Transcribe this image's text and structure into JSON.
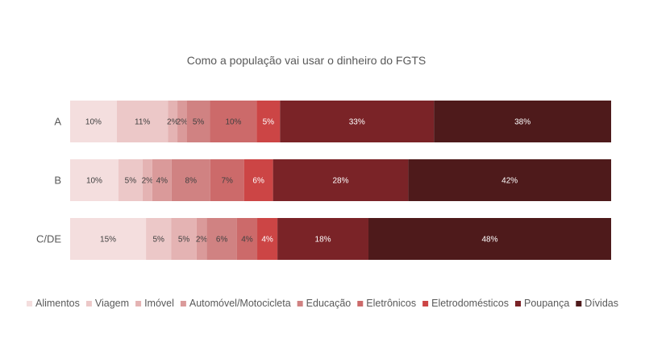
{
  "chart_data": {
    "type": "bar",
    "orientation": "horizontal",
    "stacked": "percent",
    "title": "Como a população vai usar o dinheiro do FGTS",
    "xlabel": "",
    "ylabel": "",
    "xlim": [
      0,
      100
    ],
    "grid": false,
    "legend_position": "bottom",
    "categories": [
      "A",
      "B",
      "C/DE"
    ],
    "series": [
      {
        "name": "Alimentos",
        "color": "#f4dede",
        "label_color": "#404040",
        "values": [
          10,
          10,
          15
        ],
        "labels": [
          "10%",
          "10%",
          "15%"
        ]
      },
      {
        "name": "Viagem",
        "color": "#ecc8c8",
        "label_color": "#404040",
        "values": [
          11,
          5,
          5
        ],
        "labels": [
          "11%",
          "5%",
          "5%"
        ]
      },
      {
        "name": "Imóvel",
        "color": "#e4b3b3",
        "label_color": "#404040",
        "values": [
          2,
          2,
          5
        ],
        "labels": [
          "2%",
          "2%",
          "5%"
        ]
      },
      {
        "name": "Automóvel/Motocicleta",
        "color": "#da9a9a",
        "label_color": "#404040",
        "values": [
          2,
          4,
          2
        ],
        "labels": [
          "2%",
          "4%",
          "2%"
        ]
      },
      {
        "name": "Educação",
        "color": "#d08282",
        "label_color": "#404040",
        "values": [
          5,
          8,
          6
        ],
        "labels": [
          "5%",
          "8%",
          "6%"
        ]
      },
      {
        "name": "Eletrônicos",
        "color": "#cc6a6a",
        "label_color": "#404040",
        "values": [
          10,
          7,
          4
        ],
        "labels": [
          "10%",
          "7%",
          "4%"
        ]
      },
      {
        "name": "Eletrodomésticos",
        "color": "#cc4545",
        "label_color": "#ffffff",
        "values": [
          5,
          6,
          4
        ],
        "labels": [
          "5%",
          "6%",
          "4%"
        ]
      },
      {
        "name": "Poupança",
        "color": "#7a2327",
        "label_color": "#ffffff",
        "values": [
          33,
          28,
          18
        ],
        "labels": [
          "33%",
          "28%",
          "18%"
        ]
      },
      {
        "name": "Dívidas",
        "color": "#4e1a1b",
        "label_color": "#ffffff",
        "values": [
          38,
          42,
          48
        ],
        "labels": [
          "38%",
          "42%",
          "48%"
        ]
      }
    ]
  }
}
